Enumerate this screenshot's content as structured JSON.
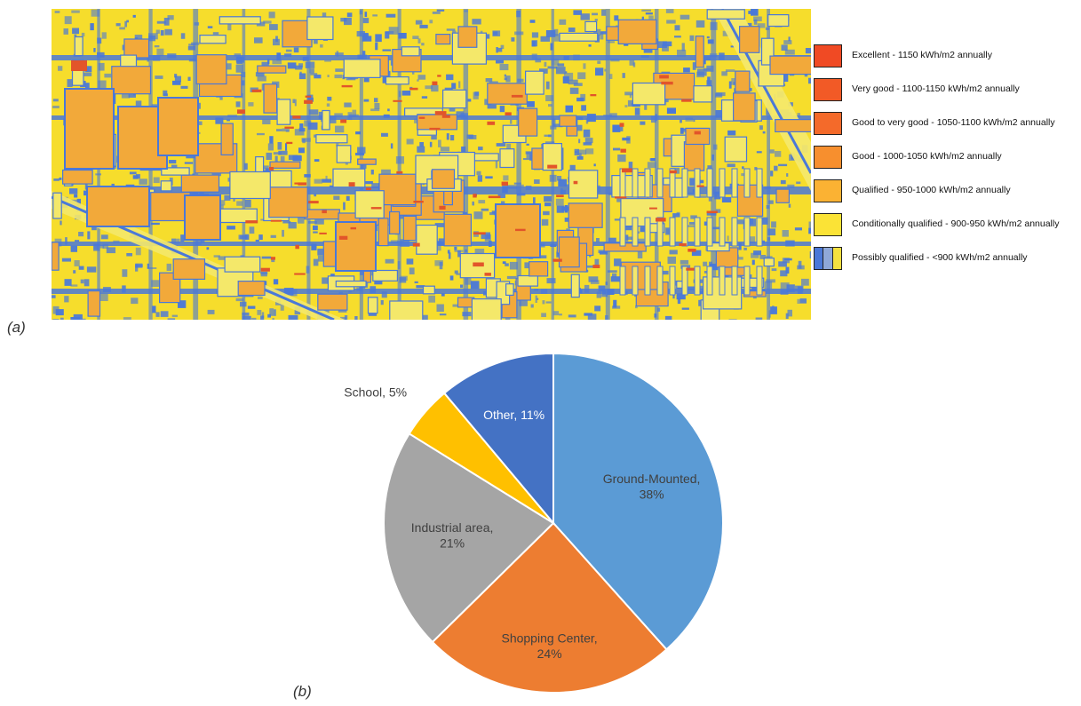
{
  "panel_a_label": "(a)",
  "panel_b_label": "(b)",
  "map": {
    "colors": {
      "background": "#f6dd2c",
      "blue": "#4a78d8",
      "orange": "#f2a93a",
      "red": "#e2552a",
      "light_yellow": "#f4e86a"
    }
  },
  "legend": {
    "items": [
      {
        "label": "Excellent - 1150 kWh/m2 annually",
        "colors": [
          "#f04a24"
        ]
      },
      {
        "label": "Very good - 1100-1150 kWh/m2 annually",
        "colors": [
          "#f25a26"
        ]
      },
      {
        "label": "Good to very good - 1050-1100 kWh/m2 annually",
        "colors": [
          "#f46a2a"
        ]
      },
      {
        "label": "Good - 1000-1050 kWh/m2 annually",
        "colors": [
          "#f78f2e"
        ]
      },
      {
        "label": "Qualified - 950-1000 kWh/m2 annually",
        "colors": [
          "#fbb233"
        ]
      },
      {
        "label": "Conditionally qualified - 900-950 kWh/m2 annually",
        "colors": [
          "#fbe336"
        ]
      },
      {
        "label": "Possibly qualified - <900 kWh/m2 annually",
        "colors": [
          "#4a78d8",
          "#8fa8d8",
          "#f4e040"
        ]
      }
    ]
  },
  "chart_data": {
    "type": "pie",
    "title": "",
    "slices": [
      {
        "label": "Ground-Mounted",
        "value": 38,
        "display": "Ground-Mounted, 38%",
        "color": "#5b9bd5",
        "text_color": "#404040"
      },
      {
        "label": "Shopping Center",
        "value": 24,
        "display": "Shopping Center, 24%",
        "color": "#ed7d31",
        "text_color": "#404040"
      },
      {
        "label": "Industrial area",
        "value": 21,
        "display": "Industrial area, 21%",
        "color": "#a5a5a5",
        "text_color": "#404040"
      },
      {
        "label": "School",
        "value": 5,
        "display": "School, 5%",
        "color": "#ffc000",
        "text_color": "#404040"
      },
      {
        "label": "Other",
        "value": 11,
        "display": "Other, 11%",
        "color": "#4472c4",
        "text_color": "#ffffff"
      }
    ],
    "start_angle_deg": 0,
    "direction": "clockwise",
    "legend": "none"
  }
}
